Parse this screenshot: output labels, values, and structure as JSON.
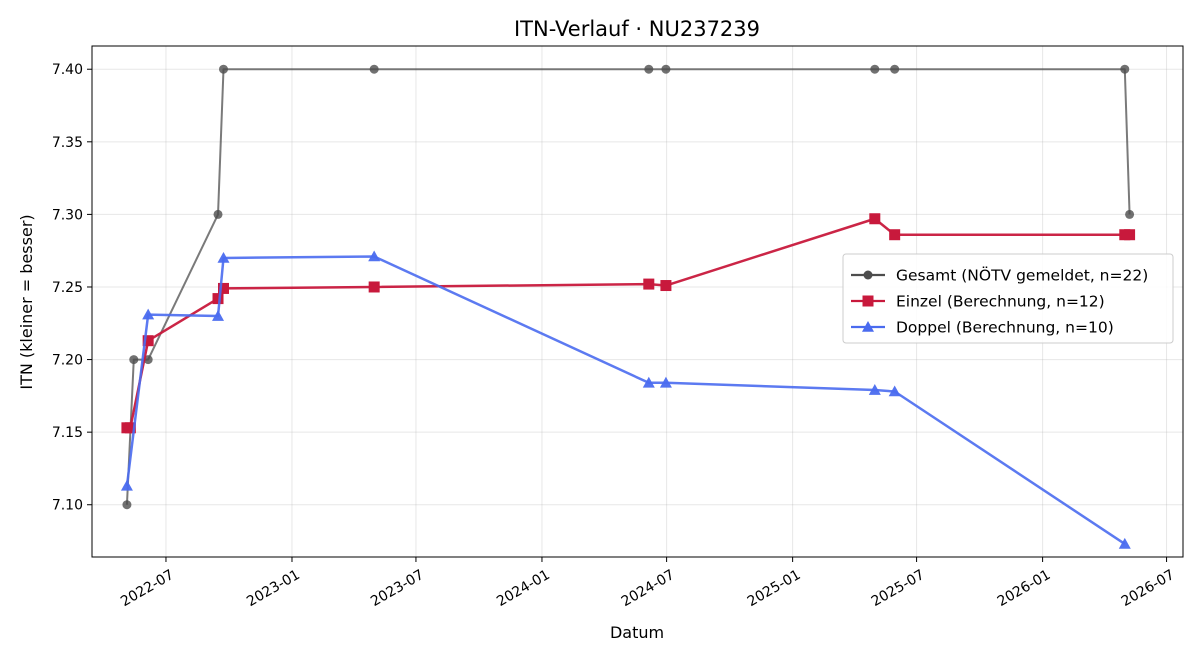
{
  "chart_data": {
    "type": "line",
    "title": "ITN-Verlauf · NU237239",
    "xlabel": "Datum",
    "ylabel": "ITN  (kleiner = besser)",
    "x_axis": "date",
    "xlim": [
      "2022-03-15",
      "2026-07-25"
    ],
    "ylim": [
      7.064,
      7.416
    ],
    "y_ticks": [
      7.1,
      7.15,
      7.2,
      7.25,
      7.3,
      7.35,
      7.4
    ],
    "y_tick_labels": [
      "7.10",
      "7.15",
      "7.20",
      "7.25",
      "7.30",
      "7.35",
      "7.40"
    ],
    "x_ticks": [
      "2022-07-01",
      "2023-01-01",
      "2023-07-01",
      "2024-01-01",
      "2024-07-01",
      "2025-01-01",
      "2025-07-01",
      "2026-01-01",
      "2026-07-01"
    ],
    "x_tick_labels": [
      "2022-07",
      "2023-01",
      "2023-07",
      "2024-01",
      "2024-07",
      "2025-01",
      "2025-07",
      "2026-01",
      "2026-07"
    ],
    "grid": true,
    "legend_position": "center-right",
    "series": [
      {
        "name": "Gesamt (NÖTV gemeldet, n=22)",
        "color": "#4d4d4d",
        "marker": "circle",
        "points": [
          {
            "x": "2022-05-05",
            "y": 7.1
          },
          {
            "x": "2022-05-15",
            "y": 7.2
          },
          {
            "x": "2022-06-05",
            "y": 7.2
          },
          {
            "x": "2022-09-15",
            "y": 7.3
          },
          {
            "x": "2022-09-23",
            "y": 7.4
          },
          {
            "x": "2023-05-01",
            "y": 7.4
          },
          {
            "x": "2024-06-05",
            "y": 7.4
          },
          {
            "x": "2024-06-30",
            "y": 7.4
          },
          {
            "x": "2025-05-01",
            "y": 7.4
          },
          {
            "x": "2025-05-30",
            "y": 7.4
          },
          {
            "x": "2026-05-01",
            "y": 7.4
          },
          {
            "x": "2026-05-08",
            "y": 7.3
          }
        ]
      },
      {
        "name": "Einzel (Berechnung, n=12)",
        "color": "#c8193c",
        "marker": "square",
        "points": [
          {
            "x": "2022-05-05",
            "y": 7.153
          },
          {
            "x": "2022-05-10",
            "y": 7.153
          },
          {
            "x": "2022-06-05",
            "y": 7.213
          },
          {
            "x": "2022-09-15",
            "y": 7.242
          },
          {
            "x": "2022-09-23",
            "y": 7.249
          },
          {
            "x": "2023-05-01",
            "y": 7.25
          },
          {
            "x": "2024-06-05",
            "y": 7.252
          },
          {
            "x": "2024-06-30",
            "y": 7.251
          },
          {
            "x": "2025-05-01",
            "y": 7.297
          },
          {
            "x": "2025-05-30",
            "y": 7.286
          },
          {
            "x": "2026-05-01",
            "y": 7.286
          },
          {
            "x": "2026-05-08",
            "y": 7.286
          }
        ]
      },
      {
        "name": "Doppel (Berechnung, n=10)",
        "color": "#4a6bef",
        "marker": "triangle",
        "points": [
          {
            "x": "2022-05-05",
            "y": 7.113
          },
          {
            "x": "2022-06-05",
            "y": 7.231
          },
          {
            "x": "2022-09-15",
            "y": 7.23
          },
          {
            "x": "2022-09-23",
            "y": 7.27
          },
          {
            "x": "2023-05-01",
            "y": 7.271
          },
          {
            "x": "2024-06-05",
            "y": 7.184
          },
          {
            "x": "2024-06-30",
            "y": 7.184
          },
          {
            "x": "2025-05-01",
            "y": 7.179
          },
          {
            "x": "2025-05-30",
            "y": 7.178
          },
          {
            "x": "2026-05-01",
            "y": 7.073
          }
        ]
      }
    ]
  }
}
